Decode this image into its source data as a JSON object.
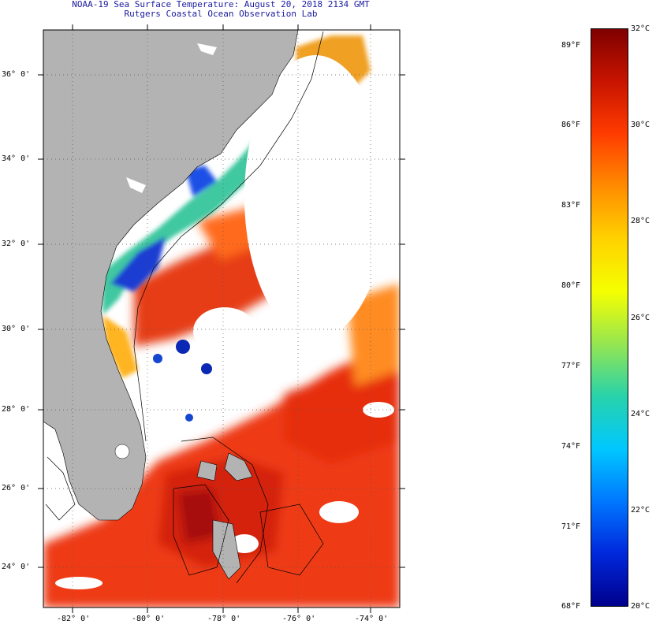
{
  "header": {
    "title": "NOAA-19 Sea Surface Temperature:  August 20, 2018 2134 GMT",
    "subtitle": "Rutgers Coastal Ocean Observation Lab"
  },
  "map": {
    "lat_labels": [
      "36° 0'",
      "34° 0'",
      "32° 0'",
      "30° 0'",
      "28° 0'",
      "26° 0'",
      "24° 0'"
    ],
    "lon_labels": [
      "-82° 0'",
      "-80° 0'",
      "-78° 0'",
      "-76° 0'",
      "-74° 0'"
    ],
    "colors": {
      "land": "#b3b3b3",
      "cloud": "#ffffff",
      "frame": "#000000"
    }
  },
  "colorbar": {
    "fahrenheit_labels": [
      "89°F",
      "86°F",
      "83°F",
      "80°F",
      "77°F",
      "74°F",
      "71°F",
      "68°F"
    ],
    "celsius_labels": [
      "32°C",
      "30°C",
      "28°C",
      "26°C",
      "24°C",
      "22°C",
      "20°C"
    ],
    "gradient": [
      "#7f0000",
      "#c81400",
      "#ff3c00",
      "#ff8c00",
      "#ffd200",
      "#f5ff00",
      "#96e650",
      "#28d2aa",
      "#00c8ff",
      "#0078ff",
      "#0028dc",
      "#00008c"
    ]
  }
}
